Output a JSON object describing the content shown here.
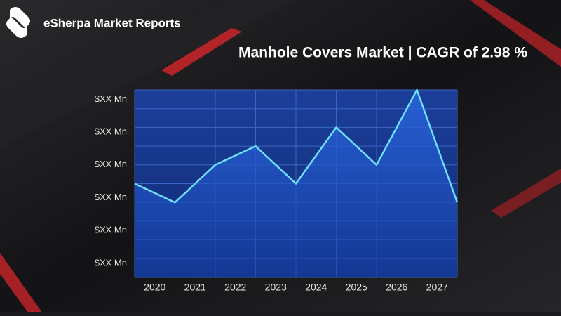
{
  "brand": "eSherpa Market Reports",
  "chart_data": {
    "type": "area-line",
    "title": "Manhole Covers Market  | CAGR of 2.98 %",
    "x": [
      2019.5,
      2020.5,
      2021.5,
      2022.5,
      2023.5,
      2024.5,
      2025.5,
      2026.5,
      2027.5
    ],
    "series": [
      {
        "color": "#6ee0ff",
        "values": [
          5,
          4,
          6,
          7,
          5,
          8,
          6,
          10,
          4
        ]
      }
    ],
    "xlim": [
      2019.5,
      2027.5
    ],
    "xticks": [
      2020,
      2021,
      2022,
      2023,
      2024,
      2025,
      2026,
      2027
    ],
    "ylim": [
      0,
      10
    ],
    "yticks": [
      {
        "value": 9.5,
        "label": "$XX Mn"
      },
      {
        "value": 7.75,
        "label": "$XX Mn"
      },
      {
        "value": 6,
        "label": "$XX Mn"
      },
      {
        "value": 4.25,
        "label": "$XX Mn"
      },
      {
        "value": 2.5,
        "label": "$XX Mn"
      },
      {
        "value": 0.75,
        "label": "$XX Mn"
      }
    ],
    "ygrid": [
      0,
      1,
      2,
      3,
      4,
      5,
      6,
      7,
      8,
      9,
      10
    ],
    "grid": true
  }
}
